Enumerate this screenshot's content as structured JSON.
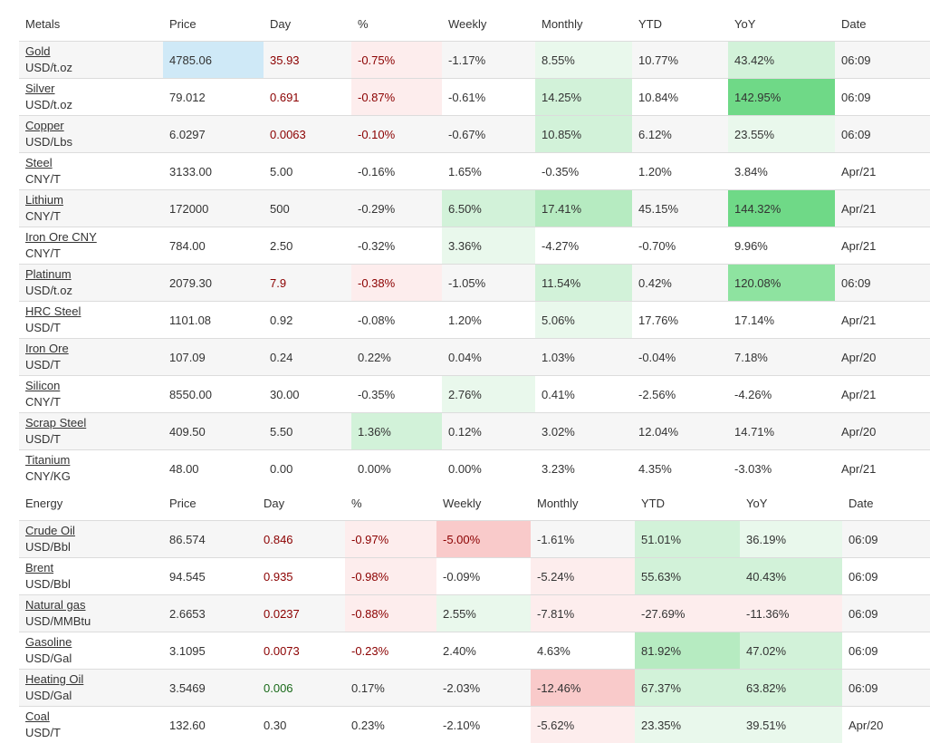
{
  "metals": {
    "headers": [
      "Metals",
      "Price",
      "Day",
      "%",
      "Weekly",
      "Monthly",
      "YTD",
      "YoY",
      "Date"
    ],
    "rows": [
      {
        "name": "Gold",
        "unit": "USD/t.oz",
        "price": "4785.06",
        "day": "35.93",
        "pct": "-0.75%",
        "weekly": "-1.17%",
        "monthly": "8.55%",
        "ytd": "10.77%",
        "yoy": "43.42%",
        "date": "06:09"
      },
      {
        "name": "Silver",
        "unit": "USD/t.oz",
        "price": "79.012",
        "day": "0.691",
        "pct": "-0.87%",
        "weekly": "-0.61%",
        "monthly": "14.25%",
        "ytd": "10.84%",
        "yoy": "142.95%",
        "date": "06:09"
      },
      {
        "name": "Copper",
        "unit": "USD/Lbs",
        "price": "6.0297",
        "day": "0.0063",
        "pct": "-0.10%",
        "weekly": "-0.67%",
        "monthly": "10.85%",
        "ytd": "6.12%",
        "yoy": "23.55%",
        "date": "06:09"
      },
      {
        "name": "Steel",
        "unit": "CNY/T",
        "price": "3133.00",
        "day": "5.00",
        "pct": "-0.16%",
        "weekly": "1.65%",
        "monthly": "-0.35%",
        "ytd": "1.20%",
        "yoy": "3.84%",
        "date": "Apr/21"
      },
      {
        "name": "Lithium",
        "unit": "CNY/T",
        "price": "172000",
        "day": "500",
        "pct": "-0.29%",
        "weekly": "6.50%",
        "monthly": "17.41%",
        "ytd": "45.15%",
        "yoy": "144.32%",
        "date": "Apr/21"
      },
      {
        "name": "Iron Ore CNY",
        "unit": "CNY/T",
        "price": "784.00",
        "day": "2.50",
        "pct": "-0.32%",
        "weekly": "3.36%",
        "monthly": "-4.27%",
        "ytd": "-0.70%",
        "yoy": "9.96%",
        "date": "Apr/21"
      },
      {
        "name": "Platinum",
        "unit": "USD/t.oz",
        "price": "2079.30",
        "day": "7.9",
        "pct": "-0.38%",
        "weekly": "-1.05%",
        "monthly": "11.54%",
        "ytd": "0.42%",
        "yoy": "120.08%",
        "date": "06:09"
      },
      {
        "name": "HRC Steel",
        "unit": "USD/T",
        "price": "1101.08",
        "day": "0.92",
        "pct": "-0.08%",
        "weekly": "1.20%",
        "monthly": "5.06%",
        "ytd": "17.76%",
        "yoy": "17.14%",
        "date": "Apr/21"
      },
      {
        "name": "Iron Ore",
        "unit": "USD/T",
        "price": "107.09",
        "day": "0.24",
        "pct": "0.22%",
        "weekly": "0.04%",
        "monthly": "1.03%",
        "ytd": "-0.04%",
        "yoy": "7.18%",
        "date": "Apr/20"
      },
      {
        "name": "Silicon",
        "unit": "CNY/T",
        "price": "8550.00",
        "day": "30.00",
        "pct": "-0.35%",
        "weekly": "2.76%",
        "monthly": "0.41%",
        "ytd": "-2.56%",
        "yoy": "-4.26%",
        "date": "Apr/21"
      },
      {
        "name": "Scrap Steel",
        "unit": "USD/T",
        "price": "409.50",
        "day": "5.50",
        "pct": "1.36%",
        "weekly": "0.12%",
        "monthly": "3.02%",
        "ytd": "12.04%",
        "yoy": "14.71%",
        "date": "Apr/20"
      },
      {
        "name": "Titanium",
        "unit": "CNY/KG",
        "price": "48.00",
        "day": "0.00",
        "pct": "0.00%",
        "weekly": "0.00%",
        "monthly": "3.23%",
        "ytd": "4.35%",
        "yoy": "-3.03%",
        "date": "Apr/21"
      }
    ]
  },
  "energy": {
    "headers": [
      "Energy",
      "Price",
      "Day",
      "%",
      "Weekly",
      "Monthly",
      "YTD",
      "YoY",
      "Date"
    ],
    "rows": [
      {
        "name": "Crude Oil",
        "unit": "USD/Bbl",
        "price": "86.574",
        "day": "0.846",
        "pct": "-0.97%",
        "weekly": "-5.00%",
        "monthly": "-1.61%",
        "ytd": "51.01%",
        "yoy": "36.19%",
        "date": "06:09"
      },
      {
        "name": "Brent",
        "unit": "USD/Bbl",
        "price": "94.545",
        "day": "0.935",
        "pct": "-0.98%",
        "weekly": "-0.09%",
        "monthly": "-5.24%",
        "ytd": "55.63%",
        "yoy": "40.43%",
        "date": "06:09"
      },
      {
        "name": "Natural gas",
        "unit": "USD/MMBtu",
        "price": "2.6653",
        "day": "0.0237",
        "pct": "-0.88%",
        "weekly": "2.55%",
        "monthly": "-7.81%",
        "ytd": "-27.69%",
        "yoy": "-11.36%",
        "date": "06:09"
      },
      {
        "name": "Gasoline",
        "unit": "USD/Gal",
        "price": "3.1095",
        "day": "0.0073",
        "pct": "-0.23%",
        "weekly": "2.40%",
        "monthly": "4.63%",
        "ytd": "81.92%",
        "yoy": "47.02%",
        "date": "06:09"
      },
      {
        "name": "Heating Oil",
        "unit": "USD/Gal",
        "price": "3.5469",
        "day": "0.006",
        "pct": "0.17%",
        "weekly": "-2.03%",
        "monthly": "-12.46%",
        "ytd": "67.37%",
        "yoy": "63.82%",
        "date": "06:09"
      },
      {
        "name": "Coal",
        "unit": "USD/T",
        "price": "132.60",
        "day": "0.30",
        "pct": "0.23%",
        "weekly": "-2.10%",
        "monthly": "-5.62%",
        "ytd": "23.35%",
        "yoy": "39.51%",
        "date": "Apr/20"
      }
    ]
  }
}
